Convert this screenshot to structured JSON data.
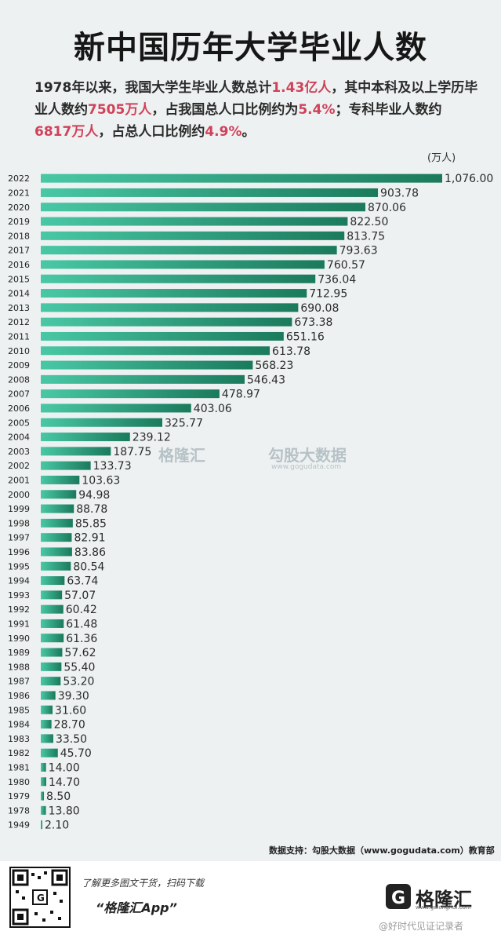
{
  "page": {
    "title": "新中国历年大学毕业人数",
    "intro_parts": [
      "1978年以来，我国大学生毕业人数总计",
      "1.43亿人",
      "，其中本科及以上学历毕业人数约",
      "7505万人",
      "，占我国总人口比例约为",
      "5.4%",
      "；专科毕业人数约",
      "6817万人",
      "，占总人口比例约",
      "4.9%",
      "。"
    ],
    "highlight_color": "#d0415a",
    "unit": "(万人)",
    "source": "数据支持：勾股大数据（www.gogudata.com）教育部",
    "watermark_brand": "格隆汇",
    "watermark_data": "勾股大数据",
    "watermark_url": "www.gogudata.com"
  },
  "footer": {
    "promo": "了解更多图文干货，扫码下载",
    "app_name": "“格隆汇App”",
    "brand": "格隆汇",
    "brand_url": "www.gelonghui.com",
    "weibo": "@好时代见证记录者"
  },
  "colors": {
    "bar_light": "#49c8a5",
    "bar_dark": "#1b7a5c",
    "title": "#161616",
    "background": "#eef1f1"
  },
  "chart_data": {
    "type": "bar",
    "orientation": "horizontal",
    "unit": "(万人)",
    "categories": [
      "2022",
      "2021",
      "2020",
      "2019",
      "2018",
      "2017",
      "2016",
      "2015",
      "2014",
      "2013",
      "2012",
      "2011",
      "2010",
      "2009",
      "2008",
      "2007",
      "2006",
      "2005",
      "2004",
      "2003",
      "2002",
      "2001",
      "2000",
      "1999",
      "1998",
      "1997",
      "1996",
      "1995",
      "1994",
      "1993",
      "1992",
      "1991",
      "1990",
      "1989",
      "1988",
      "1987",
      "1986",
      "1985",
      "1984",
      "1983",
      "1982",
      "1981",
      "1980",
      "1979",
      "1978",
      "1949"
    ],
    "values": [
      1076.0,
      903.78,
      870.06,
      822.5,
      813.75,
      793.63,
      760.57,
      736.04,
      712.95,
      690.08,
      673.38,
      651.16,
      613.78,
      568.23,
      546.43,
      478.97,
      403.06,
      325.77,
      239.12,
      187.75,
      133.73,
      103.63,
      94.98,
      88.78,
      85.85,
      82.91,
      83.86,
      80.54,
      63.74,
      57.07,
      60.42,
      61.48,
      61.36,
      57.62,
      55.4,
      53.2,
      39.3,
      31.6,
      28.7,
      33.5,
      45.7,
      14.0,
      14.7,
      8.5,
      13.8,
      2.1
    ],
    "value_labels": [
      "1,076.00",
      "903.78",
      "870.06",
      "822.50",
      "813.75",
      "793.63",
      "760.57",
      "736.04",
      "712.95",
      "690.08",
      "673.38",
      "651.16",
      "613.78",
      "568.23",
      "546.43",
      "478.97",
      "403.06",
      "325.77",
      "239.12",
      "187.75",
      "133.73",
      "103.63",
      "94.98",
      "88.78",
      "85.85",
      "82.91",
      "83.86",
      "80.54",
      "63.74",
      "57.07",
      "60.42",
      "61.48",
      "61.36",
      "57.62",
      "55.40",
      "53.20",
      "39.30",
      "31.60",
      "28.70",
      "33.50",
      "45.70",
      "14.00",
      "14.70",
      "8.50",
      "13.80",
      "2.10"
    ],
    "grid": false,
    "legend": "none"
  }
}
